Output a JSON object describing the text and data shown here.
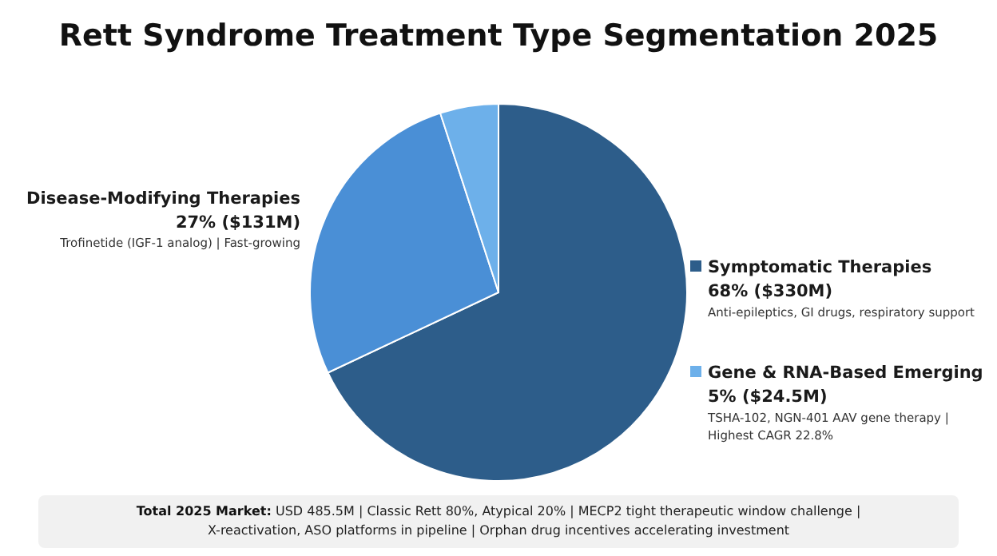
{
  "chart_data": {
    "type": "pie",
    "title": "Rett Syndrome Treatment Type Segmentation 2025",
    "categories": [
      "Symptomatic Therapies",
      "Disease-Modifying Therapies",
      "Gene & RNA-Based Emerging"
    ],
    "values": [
      68,
      27,
      5
    ],
    "colors": [
      "#2d5d8a",
      "#4a8fd6",
      "#6db0ea"
    ],
    "legend": "right",
    "value_labels": [
      "68% ($330M)",
      "27% ($131M)",
      "5% ($24.5M)"
    ],
    "annotations": [
      {
        "text": "Anti-epileptics, GI drugs, respiratory support",
        "x": "Symptomatic Therapies"
      },
      {
        "text": "Trofinetide (IGF-1 analog) | Fast-growing",
        "x": "Disease-Modifying Therapies"
      },
      {
        "text": "TSHA-102, NGN-401 AAV gene therapy | Highest CAGR 22.8%",
        "x": "Gene & RNA-Based Emerging"
      },
      "Total 2025 Market: USD 485.5M | Classic Rett 80%, Atypical 20% | MECP2 tight therapeutic window challenge | X-reactivation, ASO platforms in pipeline | Orphan drug incentives accelerating investment"
    ]
  }
}
